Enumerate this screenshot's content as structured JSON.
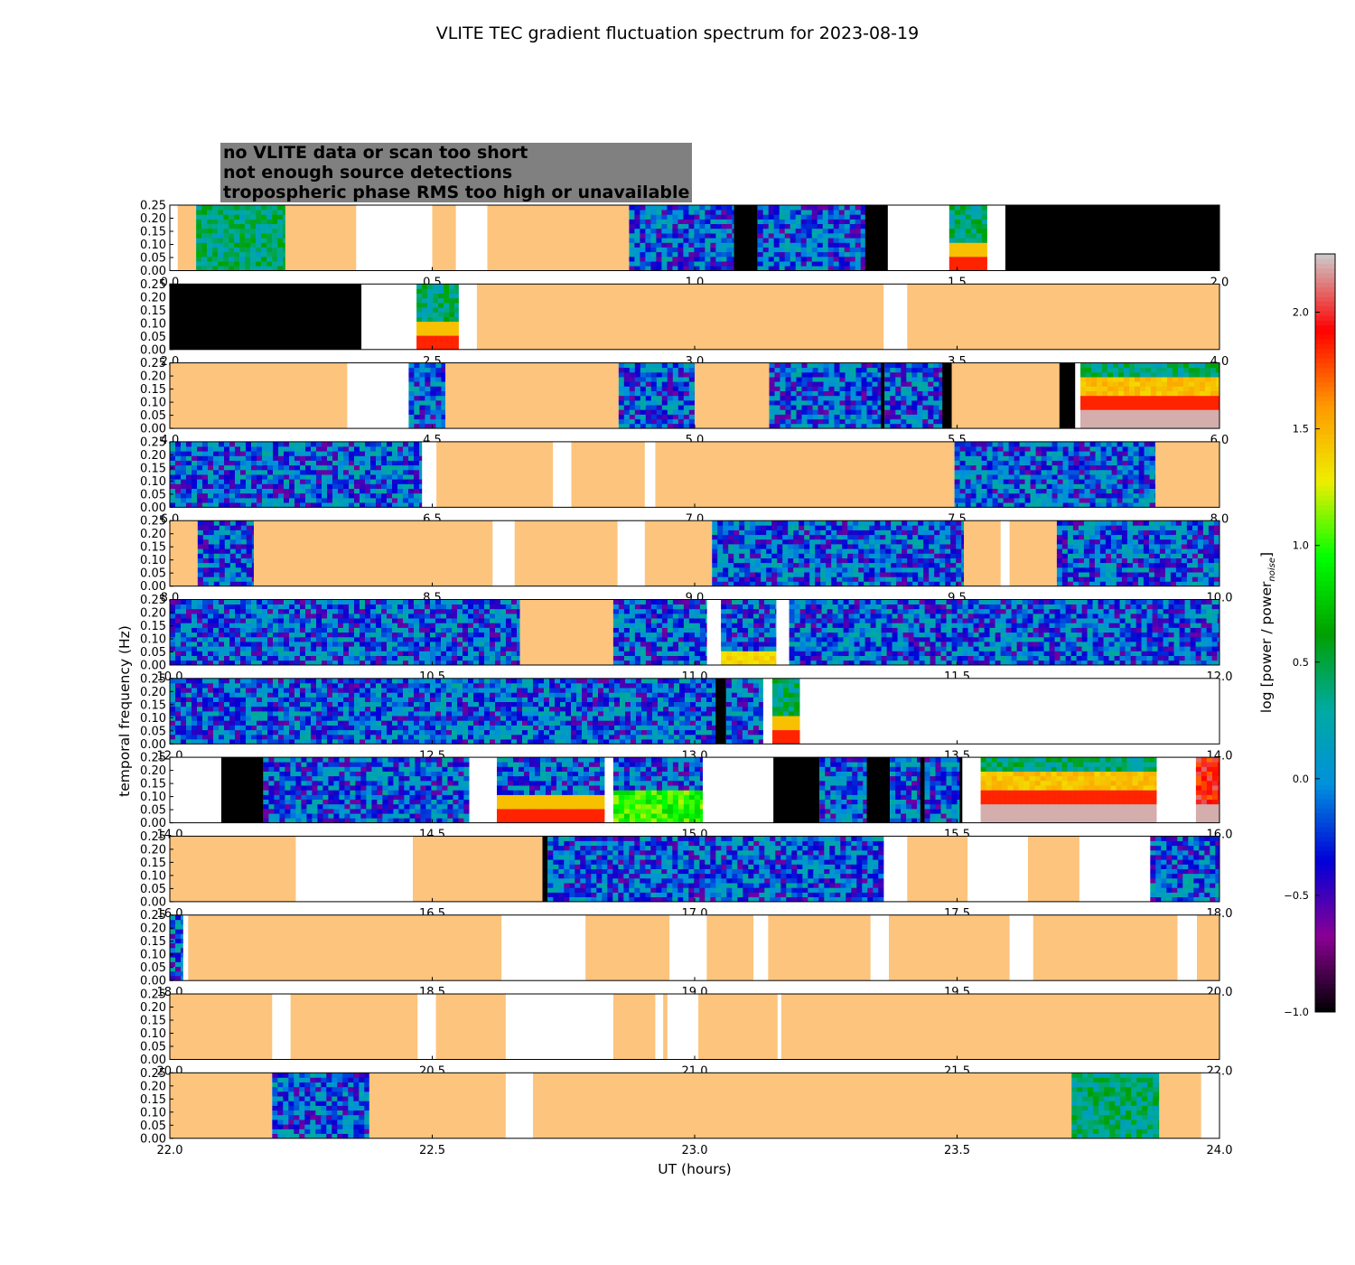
{
  "chart_data": {
    "type": "heatmap",
    "title": "VLITE TEC gradient fluctuation spectrum for 2023-08-19",
    "xlabel": "UT (hours)",
    "ylabel": "temporal frequency (Hz)",
    "ylim": [
      0,
      0.25
    ],
    "yticks": [
      "0.00",
      "0.05",
      "0.10",
      "0.15",
      "0.20",
      "0.25"
    ],
    "colorbar": {
      "label_main": "log [power / power",
      "label_sub": "noise",
      "label_end": "]",
      "range": [
        -1.0,
        2.25
      ],
      "ticks": [
        "−1.0",
        "−0.5",
        "0.0",
        "0.5",
        "1.0",
        "1.5",
        "2.0"
      ],
      "colormap": [
        "#000000",
        "#8a0094",
        "#0000d8",
        "#0090dd",
        "#00aaa0",
        "#00a000",
        "#00ff00",
        "#eeee00",
        "#ff9900",
        "#ff0000",
        "#cccccc"
      ]
    },
    "legend": [
      {
        "text": "no VLITE data or scan too short",
        "color": "#ffffff"
      },
      {
        "text": "not enough source detections",
        "color": "#000000"
      },
      {
        "text": "tropospheric phase RMS too high or unavailable",
        "color": "#fcc47c"
      }
    ],
    "panels": [
      {
        "range": [
          0,
          2
        ],
        "xticks": [
          "0.0",
          "0.5",
          "1.0",
          "1.5",
          "2.0"
        ],
        "segments": [
          [
            "T",
            0.015,
            0.05
          ],
          [
            "D",
            0.05,
            0.22,
            "green"
          ],
          [
            "T",
            0.22,
            0.355
          ],
          [
            "T",
            0.5,
            0.545
          ],
          [
            "T",
            0.605,
            0.875
          ],
          [
            "D",
            0.875,
            1.075,
            "blue"
          ],
          [
            "N",
            1.075,
            1.12
          ],
          [
            "D",
            1.12,
            1.325,
            "blue"
          ],
          [
            "N",
            1.325,
            1.368
          ],
          [
            "D",
            1.485,
            1.557,
            "green",
            "lowhot"
          ],
          [
            "N",
            1.592,
            2.0
          ]
        ]
      },
      {
        "range": [
          2,
          4
        ],
        "xticks": [
          "2.0",
          "2.5",
          "3.0",
          "3.5",
          "4.0"
        ],
        "segments": [
          [
            "N",
            2.0,
            2.365
          ],
          [
            "D",
            2.47,
            2.55,
            "green",
            "lowhot"
          ],
          [
            "T",
            2.585,
            3.36
          ],
          [
            "T",
            3.405,
            4.0
          ]
        ]
      },
      {
        "range": [
          4,
          6
        ],
        "xticks": [
          "4.0",
          "4.5",
          "5.0",
          "5.5",
          "6.0"
        ],
        "segments": [
          [
            "T",
            4.0,
            4.338
          ],
          [
            "D",
            4.455,
            4.525,
            "blue"
          ],
          [
            "T",
            4.525,
            4.855
          ],
          [
            "D",
            4.855,
            5.0,
            "blue"
          ],
          [
            "T",
            5.0,
            5.142
          ],
          [
            "D",
            5.142,
            5.355,
            "blue"
          ],
          [
            "N",
            5.355,
            5.362
          ],
          [
            "D",
            5.362,
            5.472,
            "blue"
          ],
          [
            "N",
            5.472,
            5.49
          ],
          [
            "T",
            5.49,
            5.695
          ],
          [
            "N",
            5.695,
            5.725
          ],
          [
            "D",
            5.735,
            6.0,
            "green",
            "hot"
          ]
        ]
      },
      {
        "range": [
          6,
          8
        ],
        "xticks": [
          "6.0",
          "6.5",
          "7.0",
          "7.5",
          "8.0"
        ],
        "segments": [
          [
            "D",
            6.0,
            6.48,
            "blue"
          ],
          [
            "T",
            6.508,
            6.73
          ],
          [
            "T",
            6.765,
            6.905
          ],
          [
            "T",
            6.925,
            7.495
          ],
          [
            "D",
            7.495,
            7.878,
            "blue"
          ],
          [
            "T",
            7.878,
            8.0
          ]
        ]
      },
      {
        "range": [
          8,
          10
        ],
        "xticks": [
          "8.0",
          "8.5",
          "9.0",
          "9.5",
          "10.0"
        ],
        "segments": [
          [
            "T",
            8.0,
            8.053
          ],
          [
            "D",
            8.053,
            8.16,
            "blue"
          ],
          [
            "T",
            8.16,
            8.615
          ],
          [
            "T",
            8.657,
            8.853
          ],
          [
            "T",
            8.905,
            9.033
          ],
          [
            "D",
            9.033,
            9.513,
            "blue"
          ],
          [
            "T",
            9.513,
            9.583
          ],
          [
            "T",
            9.6,
            9.69
          ],
          [
            "D",
            9.69,
            10.0,
            "blue"
          ]
        ]
      },
      {
        "range": [
          10,
          12
        ],
        "xticks": [
          "10.0",
          "10.5",
          "11.0",
          "11.5",
          "12.0"
        ],
        "segments": [
          [
            "D",
            10.0,
            10.667,
            "blue"
          ],
          [
            "T",
            10.667,
            10.845
          ],
          [
            "D",
            10.845,
            11.023,
            "blue"
          ],
          [
            "D",
            11.05,
            11.155,
            "blue",
            "lowyellow"
          ],
          [
            "D",
            11.18,
            12.0,
            "blue"
          ]
        ]
      },
      {
        "range": [
          12,
          14
        ],
        "xticks": [
          "12.0",
          "12.5",
          "13.0",
          "13.5",
          "14.0"
        ],
        "segments": [
          [
            "D",
            12.0,
            13.04,
            "blue"
          ],
          [
            "N",
            13.04,
            13.06
          ],
          [
            "D",
            13.06,
            13.13,
            "blue"
          ],
          [
            "D",
            13.148,
            13.2,
            "green",
            "lowhot"
          ]
        ]
      },
      {
        "range": [
          14,
          16
        ],
        "xticks": [
          "14.0",
          "14.5",
          "15.0",
          "15.5",
          "16.0"
        ],
        "segments": [
          [
            "N",
            14.098,
            14.178
          ],
          [
            "D",
            14.178,
            14.57,
            "blue"
          ],
          [
            "D",
            14.623,
            14.828,
            "blue",
            "lowhot"
          ],
          [
            "D",
            14.845,
            15.015,
            "blue",
            "lowgreen"
          ],
          [
            "N",
            15.15,
            15.238
          ],
          [
            "D",
            15.238,
            15.328,
            "blue"
          ],
          [
            "N",
            15.328,
            15.372
          ],
          [
            "D",
            15.372,
            15.43,
            "blue"
          ],
          [
            "N",
            15.43,
            15.438
          ],
          [
            "D",
            15.438,
            15.505,
            "blue"
          ],
          [
            "N",
            15.505,
            15.51
          ],
          [
            "D",
            15.545,
            15.88,
            "green",
            "hot"
          ],
          [
            "D",
            15.955,
            16.0,
            "green",
            "hot2"
          ]
        ]
      },
      {
        "range": [
          16,
          18
        ],
        "xticks": [
          "16.0",
          "16.5",
          "17.0",
          "17.5",
          "18.0"
        ],
        "segments": [
          [
            "T",
            16.0,
            16.24
          ],
          [
            "T",
            16.463,
            16.71
          ],
          [
            "N",
            16.71,
            16.72
          ],
          [
            "D",
            16.72,
            17.36,
            "blue"
          ],
          [
            "T",
            17.405,
            17.52
          ],
          [
            "T",
            17.635,
            17.733
          ],
          [
            "D",
            17.868,
            18.0,
            "blue"
          ]
        ]
      },
      {
        "range": [
          18,
          20
        ],
        "xticks": [
          "18.0",
          "18.5",
          "19.0",
          "19.5",
          "20.0"
        ],
        "segments": [
          [
            "D",
            18.0,
            18.025,
            "blue"
          ],
          [
            "T",
            18.035,
            18.632
          ],
          [
            "T",
            18.792,
            18.952
          ],
          [
            "T",
            19.023,
            19.112
          ],
          [
            "T",
            19.14,
            19.335
          ],
          [
            "T",
            19.37,
            19.6
          ],
          [
            "T",
            19.645,
            19.92
          ],
          [
            "T",
            19.957,
            20.0
          ]
        ]
      },
      {
        "range": [
          20,
          22
        ],
        "xticks": [
          "20.0",
          "20.5",
          "21.0",
          "21.5",
          "22.0"
        ],
        "segments": [
          [
            "T",
            20.0,
            20.195
          ],
          [
            "T",
            20.23,
            20.472
          ],
          [
            "T",
            20.507,
            20.64
          ],
          [
            "T",
            20.845,
            20.925
          ],
          [
            "T",
            20.94,
            20.948
          ],
          [
            "T",
            21.007,
            21.158
          ],
          [
            "T",
            21.165,
            22.0
          ]
        ]
      },
      {
        "range": [
          22,
          24
        ],
        "xticks": [
          "22.0",
          "22.5",
          "23.0",
          "23.5",
          "24.0"
        ],
        "segments": [
          [
            "T",
            22.0,
            22.195
          ],
          [
            "D",
            22.195,
            22.38,
            "blue"
          ],
          [
            "T",
            22.38,
            22.64
          ],
          [
            "T",
            22.692,
            23.718
          ],
          [
            "D",
            23.718,
            23.885,
            "green"
          ],
          [
            "T",
            23.885,
            23.965
          ]
        ]
      }
    ]
  }
}
